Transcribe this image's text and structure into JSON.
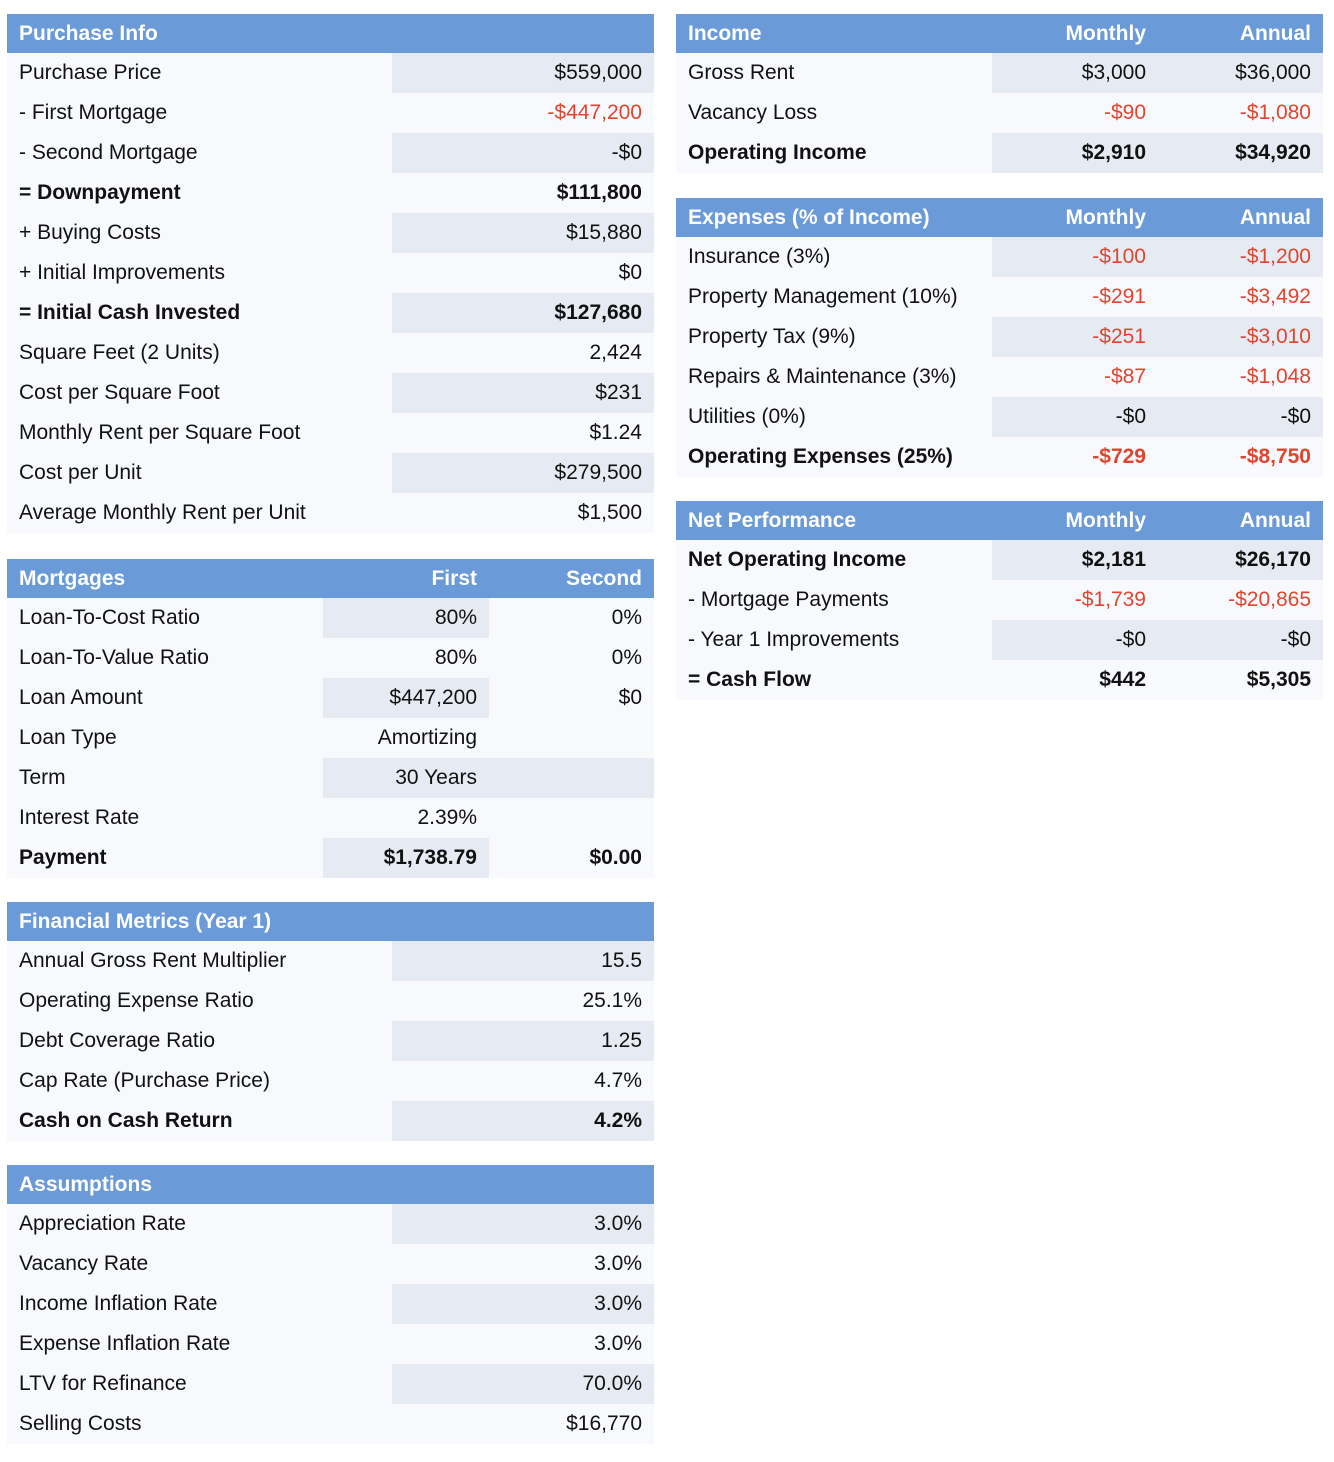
{
  "colors": {
    "header_bg": "#6b9ad8",
    "row_bg": "#f7f9fc",
    "value_bg": "#e6ebf3",
    "negative": "#e0452e"
  },
  "purchase_info": {
    "title": "Purchase Info",
    "rows": [
      {
        "label": "Purchase Price",
        "value": "$559,000"
      },
      {
        "label": "- First Mortgage",
        "value": "-$447,200"
      },
      {
        "label": "- Second Mortgage",
        "value": "-$0"
      },
      {
        "label": "= Downpayment",
        "value": "$111,800"
      },
      {
        "label": "+ Buying Costs",
        "value": "$15,880"
      },
      {
        "label": "+ Initial Improvements",
        "value": "$0"
      },
      {
        "label": "= Initial Cash Invested",
        "value": "$127,680"
      },
      {
        "label": "Square Feet (2 Units)",
        "value": "2,424"
      },
      {
        "label": "Cost per Square Foot",
        "value": "$231"
      },
      {
        "label": "Monthly Rent per Square Foot",
        "value": "$1.24"
      },
      {
        "label": "Cost per Unit",
        "value": "$279,500"
      },
      {
        "label": "Average Monthly Rent per Unit",
        "value": "$1,500"
      }
    ]
  },
  "mortgages": {
    "title": "Mortgages",
    "col1": "First",
    "col2": "Second",
    "rows": [
      {
        "label": "Loan-To-Cost Ratio",
        "first": "80%",
        "second": "0%"
      },
      {
        "label": "Loan-To-Value Ratio",
        "first": "80%",
        "second": "0%"
      },
      {
        "label": "Loan Amount",
        "first": "$447,200",
        "second": "$0"
      },
      {
        "label": "Loan Type",
        "first": "Amortizing",
        "second": ""
      },
      {
        "label": "Term",
        "first": "30 Years",
        "second": ""
      },
      {
        "label": "Interest Rate",
        "first": "2.39%",
        "second": ""
      },
      {
        "label": "Payment",
        "first": "$1,738.79",
        "second": "$0.00"
      }
    ]
  },
  "financial_metrics": {
    "title": "Financial Metrics (Year 1)",
    "rows": [
      {
        "label": "Annual Gross Rent Multiplier",
        "value": "15.5"
      },
      {
        "label": "Operating Expense Ratio",
        "value": "25.1%"
      },
      {
        "label": "Debt Coverage Ratio",
        "value": "1.25"
      },
      {
        "label": "Cap Rate (Purchase Price)",
        "value": "4.7%"
      },
      {
        "label": "Cash on Cash Return",
        "value": "4.2%"
      }
    ]
  },
  "assumptions": {
    "title": "Assumptions",
    "rows": [
      {
        "label": "Appreciation Rate",
        "value": "3.0%"
      },
      {
        "label": "Vacancy Rate",
        "value": "3.0%"
      },
      {
        "label": "Income Inflation Rate",
        "value": "3.0%"
      },
      {
        "label": "Expense Inflation Rate",
        "value": "3.0%"
      },
      {
        "label": "LTV for Refinance",
        "value": "70.0%"
      },
      {
        "label": "Selling Costs",
        "value": "$16,770"
      }
    ]
  },
  "income": {
    "title": "Income",
    "col1": "Monthly",
    "col2": "Annual",
    "rows": [
      {
        "label": "Gross Rent",
        "monthly": "$3,000",
        "annual": "$36,000"
      },
      {
        "label": "Vacancy Loss",
        "monthly": "-$90",
        "annual": "-$1,080"
      },
      {
        "label": "Operating Income",
        "monthly": "$2,910",
        "annual": "$34,920"
      }
    ]
  },
  "expenses": {
    "title": "Expenses (% of Income)",
    "col1": "Monthly",
    "col2": "Annual",
    "rows": [
      {
        "label": "Insurance (3%)",
        "monthly": "-$100",
        "annual": "-$1,200"
      },
      {
        "label": "Property Management (10%)",
        "monthly": "-$291",
        "annual": "-$3,492"
      },
      {
        "label": "Property Tax (9%)",
        "monthly": "-$251",
        "annual": "-$3,010"
      },
      {
        "label": "Repairs & Maintenance (3%)",
        "monthly": "-$87",
        "annual": "-$1,048"
      },
      {
        "label": "Utilities (0%)",
        "monthly": "-$0",
        "annual": "-$0"
      },
      {
        "label": "Operating Expenses (25%)",
        "monthly": "-$729",
        "annual": "-$8,750"
      }
    ]
  },
  "net_performance": {
    "title": "Net Performance",
    "col1": "Monthly",
    "col2": "Annual",
    "rows": [
      {
        "label": "Net Operating Income",
        "monthly": "$2,181",
        "annual": "$26,170"
      },
      {
        "label": "- Mortgage Payments",
        "monthly": "-$1,739",
        "annual": "-$20,865"
      },
      {
        "label": "- Year 1 Improvements",
        "monthly": "-$0",
        "annual": "-$0"
      },
      {
        "label": "= Cash Flow",
        "monthly": "$442",
        "annual": "$5,305"
      }
    ]
  }
}
